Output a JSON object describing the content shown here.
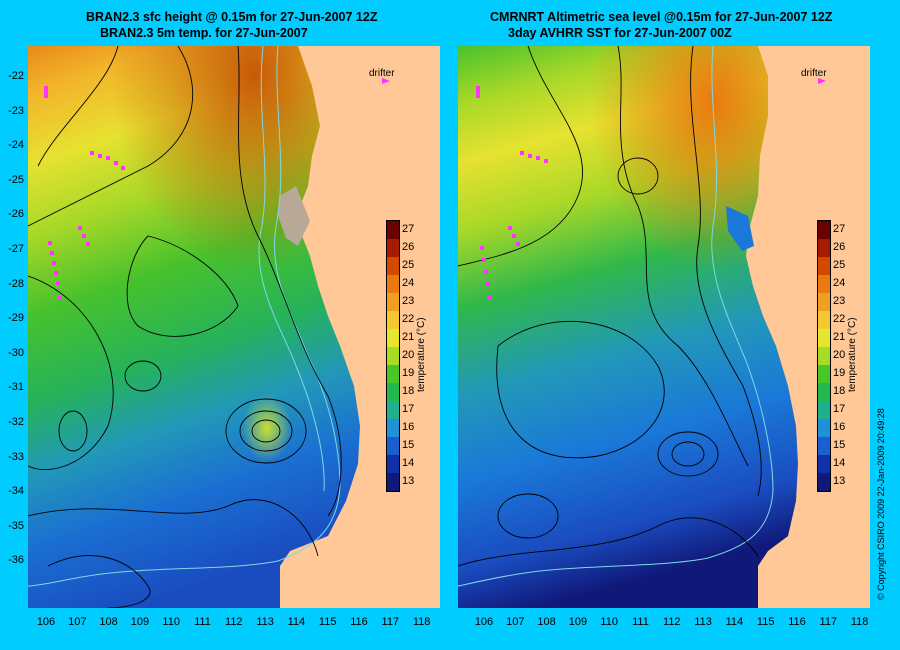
{
  "left_panel": {
    "title_line1": "BRAN2.3 sfc height @ 0.15m for 27-Jun-2007 12Z",
    "title_line2": "BRAN2.3 5m temp. for 27-Jun-2007",
    "drifter_label": "drifter"
  },
  "right_panel": {
    "title_line1": "CMRNRT Altimetric sea level  @0.15m  for 27-Jun-2007 12Z",
    "title_line2": "3day AVHRR SST for 27-Jun-2007 00Z",
    "drifter_label": "drifter"
  },
  "axes": {
    "y_ticks": [
      "-22",
      "-23",
      "-24",
      "-25",
      "-26",
      "-27",
      "-28",
      "-29",
      "-30",
      "-31",
      "-32",
      "-33",
      "-34",
      "-35",
      "-36"
    ],
    "x_ticks": [
      "106",
      "107",
      "108",
      "109",
      "110",
      "111",
      "112",
      "113",
      "114",
      "115",
      "116",
      "117",
      "118"
    ]
  },
  "colorbar": {
    "title": "temperature (°C)",
    "ticks": [
      "27",
      "26",
      "25",
      "24",
      "23",
      "22",
      "21",
      "20",
      "19",
      "18",
      "17",
      "16",
      "15",
      "14",
      "13"
    ],
    "colors": [
      "#6b0000",
      "#a61a00",
      "#d24a00",
      "#e87a10",
      "#f0a020",
      "#f5c830",
      "#e6e62a",
      "#a8dc22",
      "#48c828",
      "#22b84a",
      "#20b090",
      "#2090d8",
      "#1860d0",
      "#1030a8",
      "#101878"
    ]
  },
  "copyright": "© Copyright CSIRO 2009   22-Jan-2009 20:49:28",
  "colors": {
    "background": "#00ccff",
    "land": "#ffc896",
    "drifter": "#ff33ff",
    "contour": "#000000",
    "isobath": "#7fd8e8"
  }
}
